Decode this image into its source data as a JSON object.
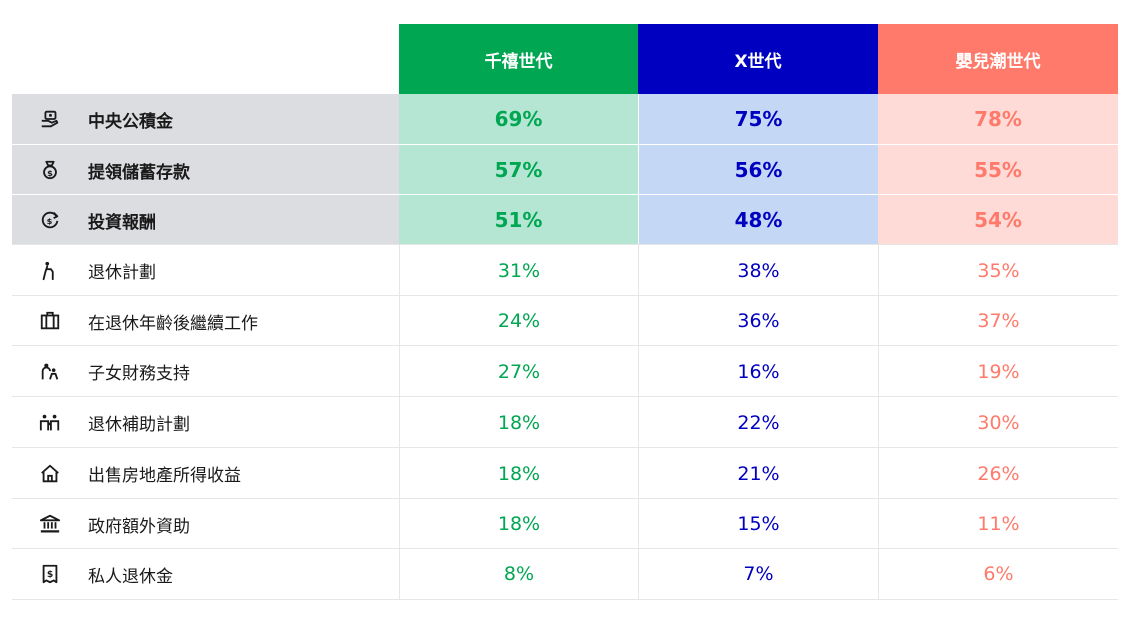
{
  "colors": {
    "millennial": "#00a651",
    "genx": "#0000c0",
    "boomer": "#ff7a6b",
    "millennial_light": "#b5e6d3",
    "genx_light": "#c4d8f5",
    "boomer_light": "#ffdbd8",
    "label_bg": "#dcdde1"
  },
  "chart_data": {
    "type": "table",
    "columns": [
      "千禧世代",
      "X世代",
      "嬰兒潮世代"
    ],
    "rows": [
      {
        "label": "中央公積金",
        "icon": "hand-money-icon",
        "emphasis": true,
        "values": [
          "69%",
          "75%",
          "78%"
        ]
      },
      {
        "label": "提領儲蓄存款",
        "icon": "money-bag-icon",
        "emphasis": true,
        "values": [
          "57%",
          "56%",
          "55%"
        ]
      },
      {
        "label": "投資報酬",
        "icon": "dollar-return-icon",
        "emphasis": true,
        "values": [
          "51%",
          "48%",
          "54%"
        ]
      },
      {
        "label": "退休計劃",
        "icon": "elderly-person-icon",
        "emphasis": false,
        "values": [
          "31%",
          "38%",
          "35%"
        ]
      },
      {
        "label": "在退休年齡後繼續工作",
        "icon": "briefcase-icon",
        "emphasis": false,
        "values": [
          "24%",
          "36%",
          "37%"
        ]
      },
      {
        "label": "子女財務支持",
        "icon": "parent-child-icon",
        "emphasis": false,
        "values": [
          "27%",
          "16%",
          "19%"
        ]
      },
      {
        "label": "退休補助計劃",
        "icon": "family-icon",
        "emphasis": false,
        "values": [
          "18%",
          "22%",
          "30%"
        ]
      },
      {
        "label": "出售房地產所得收益",
        "icon": "house-icon",
        "emphasis": false,
        "values": [
          "18%",
          "21%",
          "26%"
        ]
      },
      {
        "label": "政府額外資助",
        "icon": "government-building-icon",
        "emphasis": false,
        "values": [
          "18%",
          "15%",
          "11%"
        ]
      },
      {
        "label": "私人退休金",
        "icon": "receipt-dollar-icon",
        "emphasis": false,
        "values": [
          "8%",
          "7%",
          "6%"
        ]
      }
    ]
  }
}
